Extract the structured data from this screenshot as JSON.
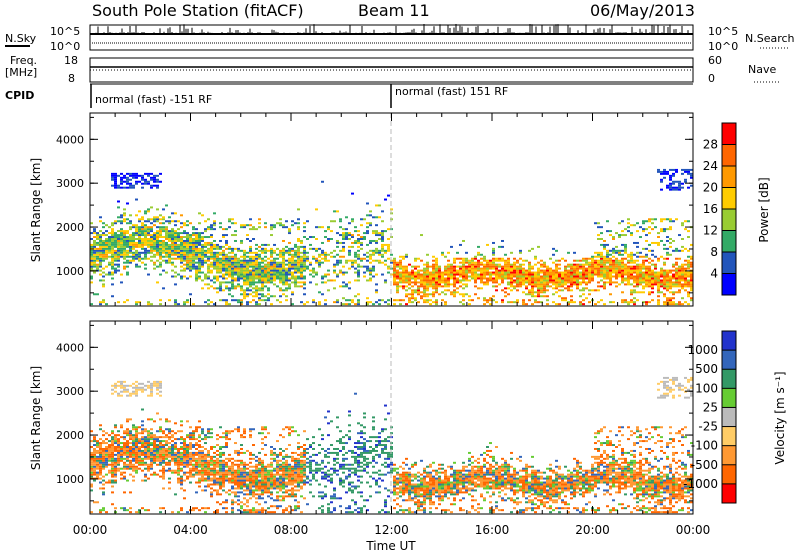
{
  "header": {
    "station": "South Pole Station (fitACF)",
    "beam": "Beam 11",
    "date": "06/May/2013"
  },
  "top_panels": {
    "nsky_label": "N.Sky",
    "nsearch_label": "N.Search",
    "freq_label_line1": "Freq.",
    "freq_label_line2": "[MHz]",
    "nave_label": "Nave",
    "cpid_label": "CPID",
    "noise_ticks": [
      "10^5",
      "10^0"
    ],
    "freq_ticks": [
      "18",
      "8"
    ],
    "nave_ticks": [
      "60",
      "0"
    ],
    "cpid_segments": [
      "normal (fast) -151 RF",
      "normal (fast) 151 RF"
    ]
  },
  "colorbars": {
    "power": {
      "label": "Power [dB]",
      "ticks": [
        "28",
        "24",
        "20",
        "16",
        "12",
        "8",
        "4"
      ],
      "colors": [
        "#ff0000",
        "#ff6600",
        "#ff9900",
        "#ffcc00",
        "#99cc33",
        "#33aa66",
        "#2255bb",
        "#0000ff"
      ]
    },
    "velocity": {
      "label": "Velocity [m s⁻¹]",
      "ticks": [
        "1000",
        "500",
        "100",
        "25",
        "-25",
        "-100",
        "-500",
        "-1000"
      ],
      "colors": [
        "#2233cc",
        "#3366bb",
        "#339966",
        "#66cc33",
        "#bbbbbb",
        "#ffcc66",
        "#ff9933",
        "#ff6600",
        "#ff0000"
      ]
    }
  },
  "chart_data": [
    {
      "type": "heatmap",
      "panel": "power",
      "ylabel": "Slant Range [km]",
      "y_ticks": [
        "1000",
        "2000",
        "3000",
        "4000"
      ],
      "ylim": [
        200,
        4600
      ],
      "xlim": [
        "00:00",
        "24:00"
      ],
      "x_ticks": [
        "00:00",
        "04:00",
        "08:00",
        "12:00",
        "16:00",
        "20:00",
        "00:00"
      ],
      "clim_db": [
        0,
        32
      ]
    },
    {
      "type": "heatmap",
      "panel": "velocity",
      "ylabel": "Slant Range [km]",
      "y_ticks": [
        "1000",
        "2000",
        "3000",
        "4000"
      ],
      "ylim": [
        200,
        4600
      ],
      "xlim": [
        "00:00",
        "24:00"
      ],
      "x_ticks": [
        "00:00",
        "04:00",
        "08:00",
        "12:00",
        "16:00",
        "20:00",
        "00:00"
      ],
      "xlabel": "Time UT"
    }
  ]
}
